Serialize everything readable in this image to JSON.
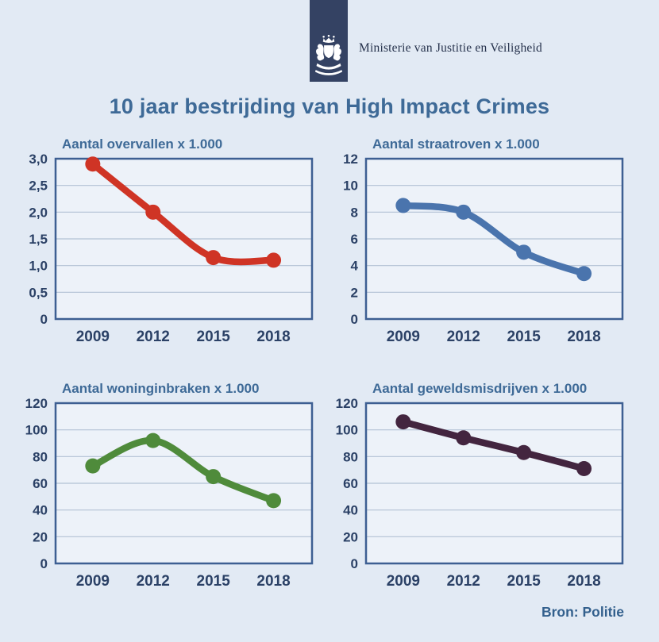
{
  "header": {
    "ministry": "Ministerie van Justitie en Veiligheid",
    "logo_icon": "rijksoverheid-coat-of-arms"
  },
  "title": "10 jaar bestrijding van High Impact Crimes",
  "source": "Bron: Politie",
  "colors": {
    "logo_navy": "#344263",
    "title_blue": "#3e6a97",
    "tick_navy": "#2b4166",
    "source_blue": "#33608d",
    "frame_blue": "#3d5f92",
    "gridline": "#b3c1d4",
    "page_bg": "#e2eaf4",
    "plot_bg": "#edf2f9"
  },
  "chart_data": [
    {
      "type": "line",
      "title": "Aantal overvallen x 1.000",
      "categories": [
        "2009",
        "2012",
        "2015",
        "2018"
      ],
      "values": [
        2.9,
        2.0,
        1.15,
        1.1
      ],
      "ylim": [
        0,
        3
      ],
      "ytick_labels": [
        "3,0",
        "2,5",
        "2,0",
        "1,5",
        "1,0",
        "0,5",
        "0"
      ],
      "color": "#cf3425",
      "grid": true,
      "legend": "none"
    },
    {
      "type": "line",
      "title": "Aantal straatroven x 1.000",
      "categories": [
        "2009",
        "2012",
        "2015",
        "2018"
      ],
      "values": [
        8.5,
        8.0,
        5.0,
        3.4
      ],
      "ylim": [
        0,
        12
      ],
      "ytick_labels": [
        "12",
        "10",
        "8",
        "6",
        "4",
        "2",
        "0"
      ],
      "color": "#4a74ad",
      "grid": true,
      "legend": "none"
    },
    {
      "type": "line",
      "title": "Aantal woninginbraken x 1.000",
      "categories": [
        "2009",
        "2012",
        "2015",
        "2018"
      ],
      "values": [
        73,
        92,
        65,
        47
      ],
      "ylim": [
        0,
        120
      ],
      "ytick_labels": [
        "120",
        "100",
        "80",
        "60",
        "40",
        "20",
        "0"
      ],
      "color": "#4f8b3b",
      "grid": true,
      "legend": "none"
    },
    {
      "type": "line",
      "title": "Aantal geweldsmisdrijven x 1.000",
      "categories": [
        "2009",
        "2012",
        "2015",
        "2018"
      ],
      "values": [
        106,
        94,
        83,
        71
      ],
      "ylim": [
        0,
        120
      ],
      "ytick_labels": [
        "120",
        "100",
        "80",
        "60",
        "40",
        "20",
        "0"
      ],
      "color": "#43253f",
      "grid": true,
      "legend": "none"
    }
  ]
}
